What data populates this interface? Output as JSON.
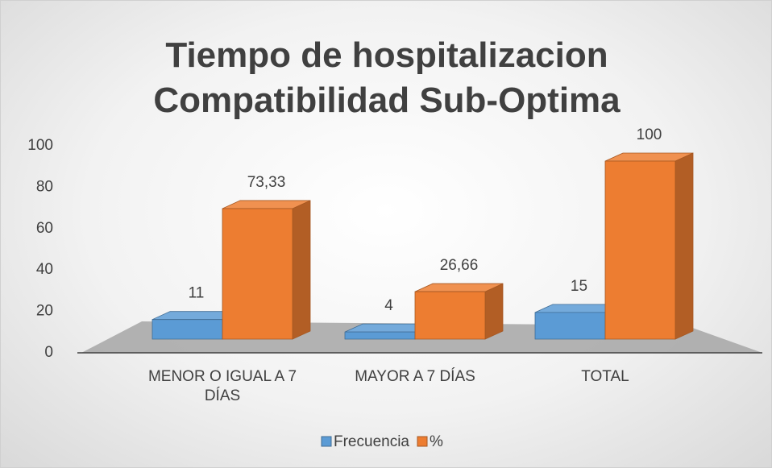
{
  "chart_data": {
    "type": "bar3d",
    "title": "Tiempo de hospitalizacion Compatibilidad Sub-Optima",
    "categories": [
      "MENOR O IGUAL A 7 DÍAS",
      "MAYOR A 7 DÍAS",
      "TOTAL"
    ],
    "series": [
      {
        "name": "Frecuencia",
        "color": "#5b9bd5",
        "values": [
          11,
          4,
          15
        ]
      },
      {
        "name": "%",
        "color": "#ed7d31",
        "values": [
          73.33,
          26.66,
          100
        ],
        "value_labels": [
          "73,33",
          "26,66",
          "100"
        ]
      }
    ],
    "ylim": [
      0,
      100
    ],
    "yticks": [
      0,
      20,
      40,
      60,
      80,
      100
    ],
    "grid": false,
    "legend": "bottom"
  }
}
